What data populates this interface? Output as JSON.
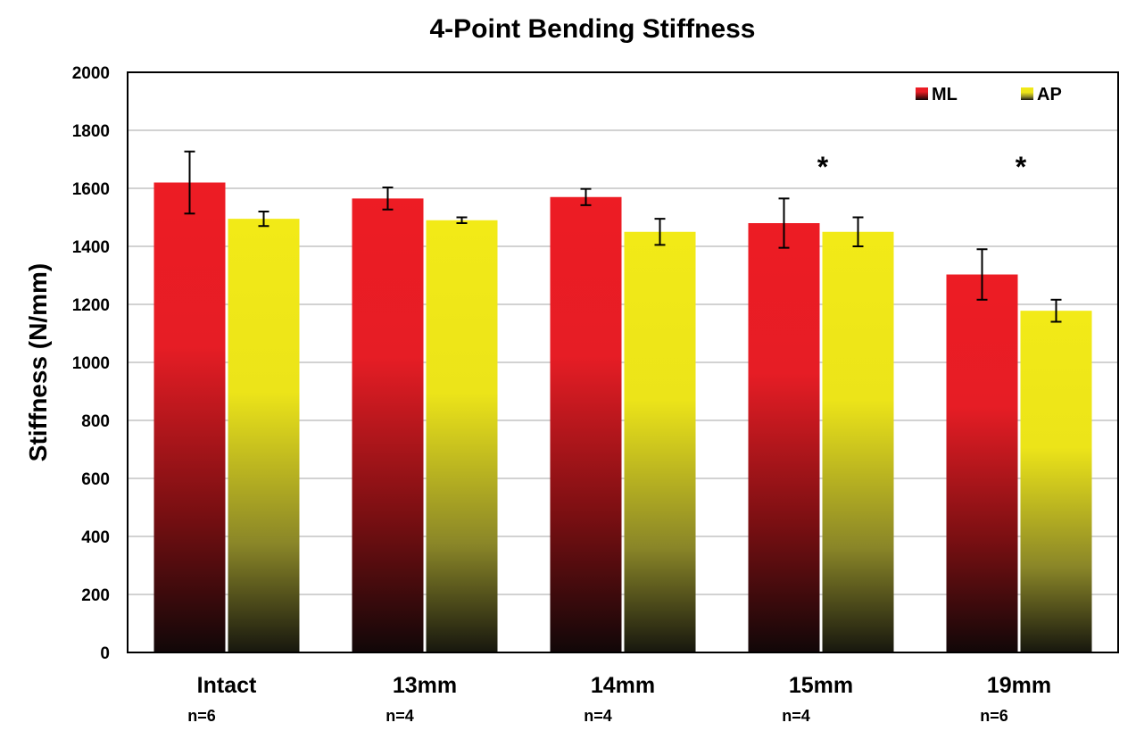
{
  "chart_data": {
    "type": "bar",
    "title": "4-Point Bending Stiffness",
    "ylabel": "Stiffness (N/mm)",
    "xlabel": "",
    "ylim": [
      0,
      2000
    ],
    "yticks": [
      0,
      200,
      400,
      600,
      800,
      1000,
      1200,
      1400,
      1600,
      1800,
      2000
    ],
    "grid": true,
    "legend_position": "top-right",
    "categories": [
      "Intact",
      "13mm",
      "14mm",
      "15mm",
      "19mm"
    ],
    "sample_sizes": [
      "n=6",
      "n=4",
      "n=4",
      "n=4",
      "n=6"
    ],
    "series": [
      {
        "name": "ML",
        "color": "#ed1c24",
        "values": [
          1620,
          1565,
          1570,
          1480,
          1303
        ],
        "error": [
          107,
          38,
          28,
          85,
          87
        ]
      },
      {
        "name": "AP",
        "color": "#f2ea17",
        "values": [
          1495,
          1490,
          1450,
          1450,
          1178
        ],
        "error": [
          25,
          10,
          45,
          50,
          38
        ]
      }
    ],
    "annotations": [
      {
        "category": "15mm",
        "text": "*"
      },
      {
        "category": "19mm",
        "text": "*"
      }
    ]
  }
}
